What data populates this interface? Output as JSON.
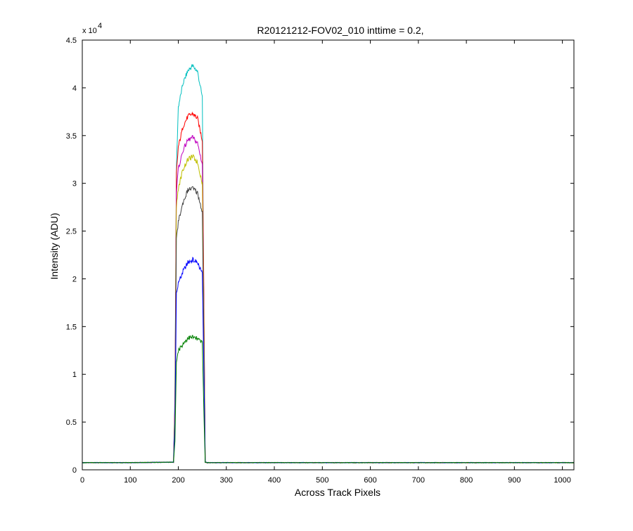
{
  "chart_data": {
    "type": "line",
    "title": "R20121212-FOV02_010 inttime = 0.2,",
    "xlabel": "Across Track Pixels",
    "ylabel": "Intensity (ADU)",
    "xlim": [
      0,
      1024
    ],
    "ylim": [
      0,
      45000
    ],
    "y_multiplier_base": "x 10",
    "y_multiplier_exponent": "4",
    "xticks": [
      0,
      100,
      200,
      300,
      400,
      500,
      600,
      700,
      800,
      900,
      1000
    ],
    "xtick_labels": [
      "0",
      "100",
      "200",
      "300",
      "400",
      "500",
      "600",
      "700",
      "800",
      "900",
      "1000"
    ],
    "yticks": [
      0,
      5000,
      10000,
      15000,
      20000,
      25000,
      30000,
      35000,
      40000,
      45000
    ],
    "ytick_labels": [
      "0",
      "0.5",
      "1",
      "1.5",
      "2",
      "2.5",
      "3",
      "3.5",
      "4",
      "4.5"
    ],
    "grid": false,
    "legend": "none",
    "x": [
      0,
      100,
      190,
      193,
      196,
      200,
      210,
      220,
      230,
      240,
      250,
      253,
      256,
      260,
      300,
      400,
      500,
      600,
      700,
      800,
      900,
      1024
    ],
    "series": [
      {
        "color": "#00bfbf",
        "values": [
          750,
          750,
          800,
          8000,
          31500,
          38000,
          40500,
          41800,
          42300,
          41700,
          39000,
          18000,
          800,
          750,
          750,
          750,
          750,
          750,
          750,
          750,
          750,
          750
        ]
      },
      {
        "color": "#ff0000",
        "values": [
          750,
          750,
          800,
          7000,
          31000,
          33800,
          36000,
          37000,
          37300,
          36800,
          34500,
          20000,
          800,
          750,
          750,
          750,
          750,
          750,
          750,
          750,
          750,
          750
        ]
      },
      {
        "color": "#bf00bf",
        "values": [
          750,
          750,
          800,
          6500,
          29000,
          31500,
          33500,
          34500,
          34800,
          34200,
          32000,
          18000,
          800,
          750,
          750,
          750,
          750,
          750,
          750,
          750,
          750,
          750
        ]
      },
      {
        "color": "#bfbf00",
        "values": [
          750,
          750,
          800,
          6000,
          27500,
          29500,
          31500,
          32500,
          32800,
          32200,
          30000,
          17000,
          800,
          750,
          750,
          750,
          750,
          750,
          750,
          750,
          750,
          750
        ]
      },
      {
        "color": "#404040",
        "values": [
          750,
          750,
          800,
          5500,
          24000,
          26000,
          28000,
          29300,
          29500,
          29000,
          27000,
          14000,
          800,
          750,
          750,
          750,
          750,
          750,
          750,
          750,
          750,
          750
        ]
      },
      {
        "color": "#0000ff",
        "values": [
          750,
          750,
          800,
          4500,
          18500,
          19500,
          20800,
          21700,
          22000,
          21700,
          20500,
          11000,
          800,
          750,
          750,
          750,
          750,
          750,
          750,
          750,
          750,
          750
        ]
      },
      {
        "color": "#008000",
        "values": [
          750,
          750,
          800,
          3000,
          11500,
          12500,
          13200,
          13800,
          13900,
          13700,
          13300,
          6500,
          800,
          750,
          750,
          750,
          750,
          750,
          750,
          750,
          750,
          750
        ]
      }
    ]
  }
}
